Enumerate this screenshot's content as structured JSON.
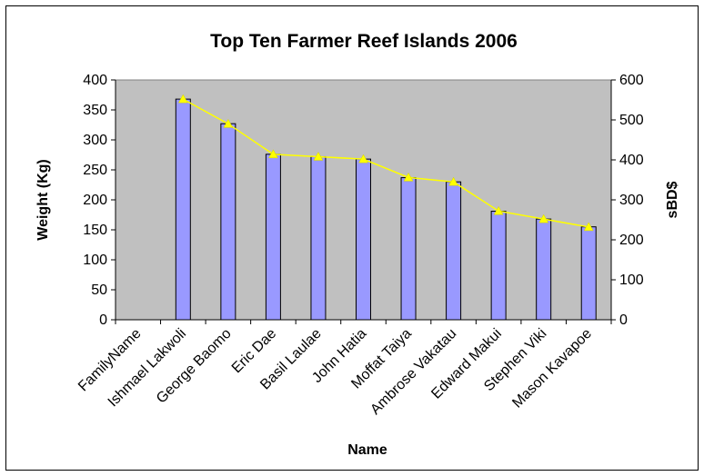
{
  "chart_data": {
    "type": "bar",
    "title": "Top Ten Farmer Reef Islands 2006",
    "xlabel": "Name",
    "ylabel": "Weight (Kg)",
    "y2label": "sBD$",
    "categories": [
      "FamilyName",
      "Ishmael Lakwoli",
      "George Baomo",
      "Eric Dae",
      "Basil Laulae",
      "John Hatia",
      "Moffat Taiya",
      "Ambrose Vakatau",
      "Edward Makui",
      "Stephen Viki",
      "Mason Kavapoe"
    ],
    "series": [
      {
        "type": "bar",
        "axis": "left",
        "values": [
          null,
          368,
          327,
          276,
          272,
          268,
          237,
          230,
          181,
          168,
          155
        ]
      },
      {
        "type": "line",
        "axis": "right",
        "marker": "triangle",
        "values": [
          null,
          552,
          490,
          414,
          408,
          402,
          356,
          345,
          272,
          252,
          232
        ]
      }
    ],
    "ylim": [
      0,
      400
    ],
    "yticks": [
      "0",
      "50",
      "100",
      "150",
      "200",
      "250",
      "300",
      "350",
      "400"
    ],
    "y2lim": [
      0,
      600
    ],
    "y2ticks": [
      "0",
      "100",
      "200",
      "300",
      "400",
      "500",
      "600"
    ],
    "grid": false,
    "legend": "none",
    "colors": {
      "plot_background": "#c0c0c0",
      "bar_fill": "#9999ff",
      "line": "#ffff00",
      "axis": "#000000"
    }
  }
}
